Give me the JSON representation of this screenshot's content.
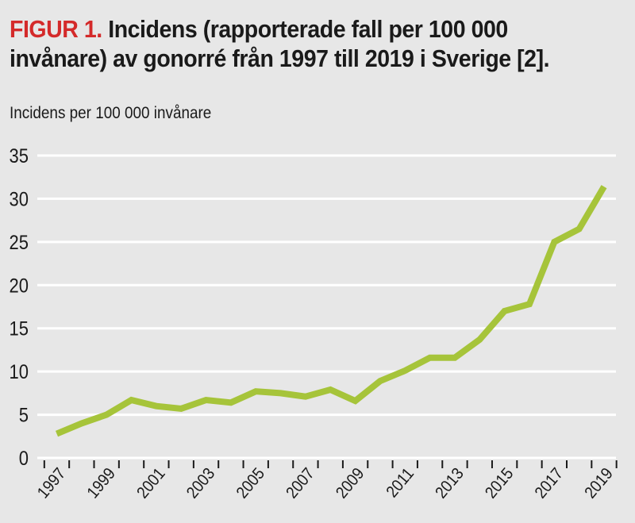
{
  "chart_data": {
    "type": "line",
    "title_label": "FIGUR 1.",
    "title": "Incidens (rapporterade fall per 100 000 invånare) av gonorré från 1997 till 2019 i Sverige [2].",
    "ylabel": "Incidens per 100 000 invånare",
    "xlabel": "",
    "ylim": [
      0,
      35
    ],
    "yticks": [
      "0",
      "5",
      "10",
      "15",
      "20",
      "25",
      "30",
      "35"
    ],
    "xtick_labels": [
      "1997",
      "1999",
      "2001",
      "2003",
      "2005",
      "2007",
      "2009",
      "2011",
      "2013",
      "2015",
      "2017",
      "2019"
    ],
    "grid": true,
    "x": [
      1997,
      1998,
      1999,
      2000,
      2001,
      2002,
      2003,
      2004,
      2005,
      2006,
      2007,
      2008,
      2009,
      2010,
      2011,
      2012,
      2013,
      2014,
      2015,
      2016,
      2017,
      2018,
      2019
    ],
    "series": [
      {
        "name": "Gonorré",
        "values": [
          2.8,
          4.0,
          5.0,
          6.7,
          6.0,
          5.7,
          6.7,
          6.4,
          7.7,
          7.5,
          7.1,
          7.9,
          6.6,
          8.9,
          10.1,
          11.6,
          11.6,
          13.7,
          17.0,
          17.8,
          25.0,
          26.5,
          31.4
        ],
        "color": "#a6c43a"
      }
    ],
    "colors": {
      "title_label": "#d42a2a",
      "background": "#e7e7e7",
      "grid": "#ffffff"
    }
  }
}
